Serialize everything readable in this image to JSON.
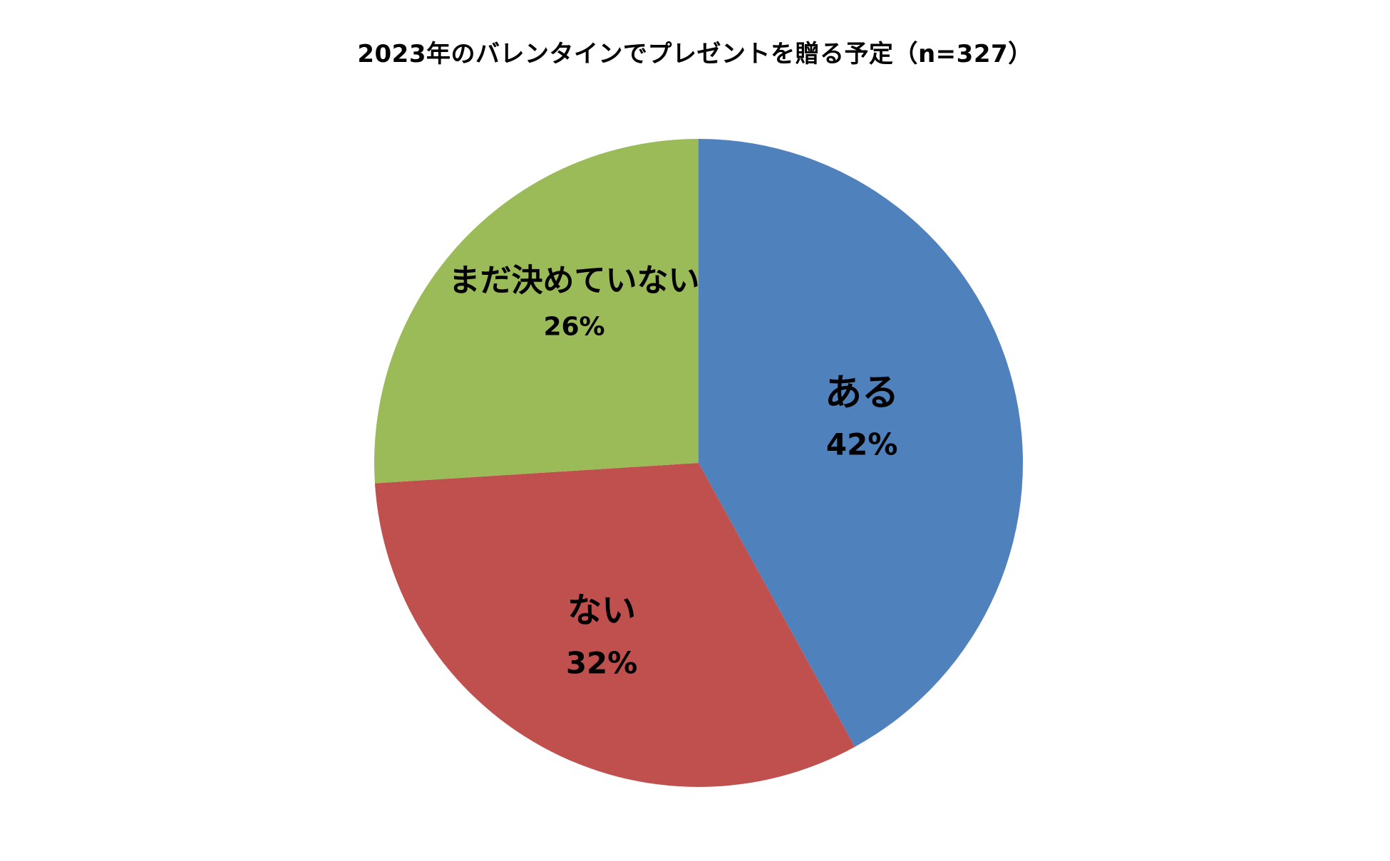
{
  "chart_data": {
    "type": "pie",
    "title": "2023年のバレンタインでプレゼントを贈る予定（n=327）",
    "slices": [
      {
        "label": "ある",
        "value": 42,
        "value_label": "42%",
        "color": "#4F81BD"
      },
      {
        "label": "ない",
        "value": 32,
        "value_label": "32%",
        "color": "#C0504D"
      },
      {
        "label": "まだ決めていない",
        "value": 26,
        "value_label": "26%",
        "color": "#9BBB59"
      }
    ],
    "start": "12 o'clock",
    "direction": "clockwise",
    "legend": "none",
    "data_labels": "inside"
  }
}
